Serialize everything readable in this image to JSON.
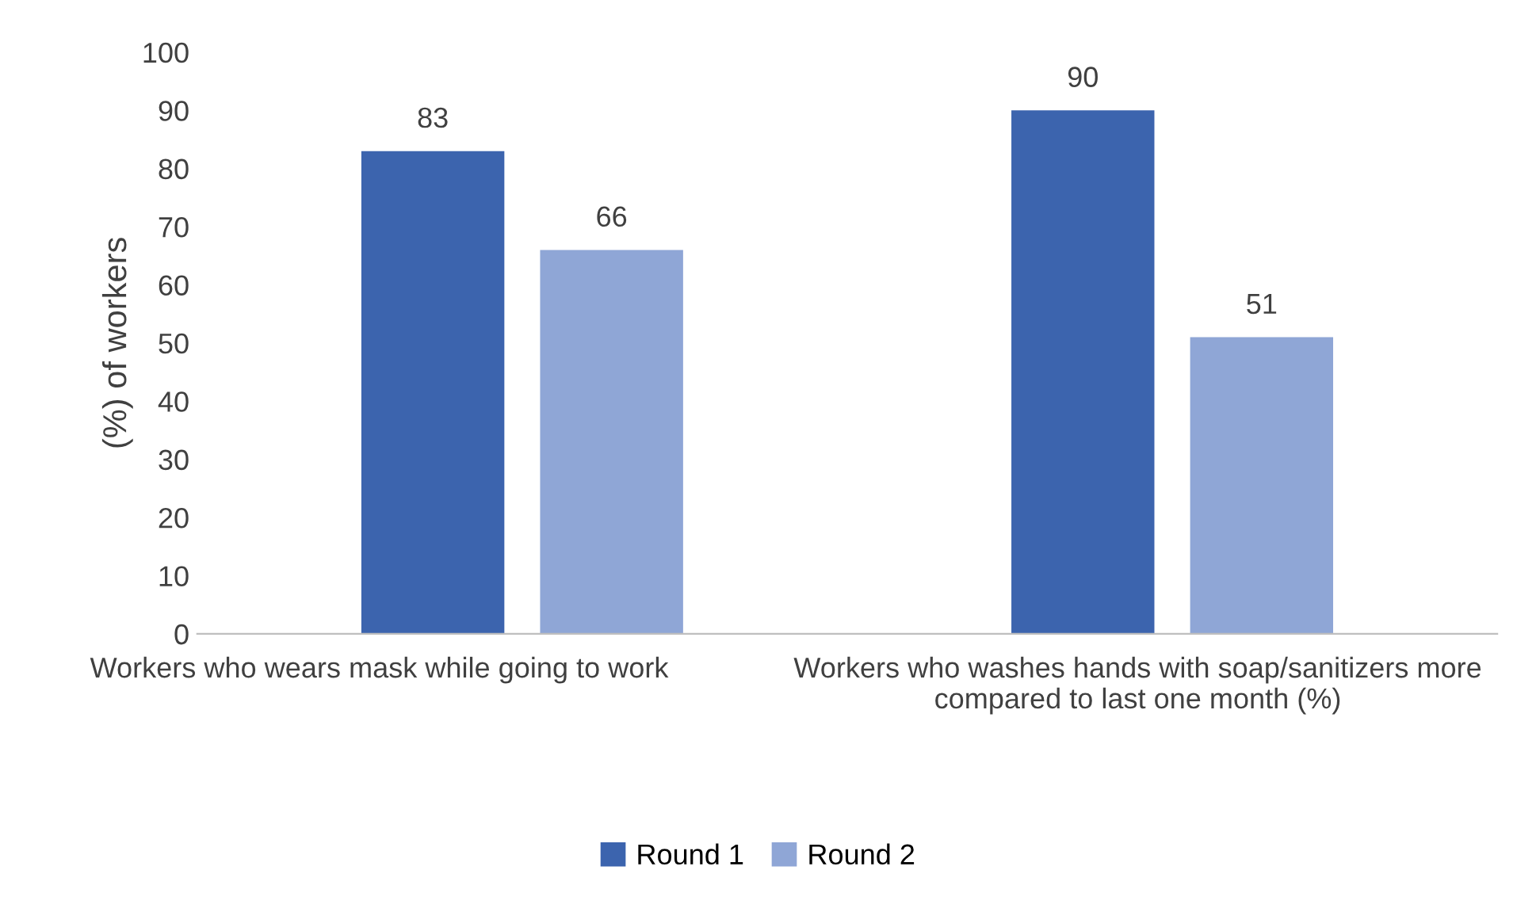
{
  "chart_data": {
    "type": "bar",
    "ylabel": "(%) of workers",
    "categories": [
      "Workers who wears mask while going to work",
      "Workers who washes hands with soap/sanitizers more compared to last one month (%)"
    ],
    "series": [
      {
        "name": "Round 1",
        "color": "#3c64ae",
        "values": [
          83,
          90
        ]
      },
      {
        "name": "Round 2",
        "color": "#8fa6d6",
        "values": [
          66,
          51
        ]
      }
    ],
    "ylim": [
      0,
      100
    ],
    "yticks": [
      0,
      10,
      20,
      30,
      40,
      50,
      60,
      70,
      80,
      90,
      100
    ],
    "grid": false,
    "legend": "bottom",
    "data_labels": true
  }
}
